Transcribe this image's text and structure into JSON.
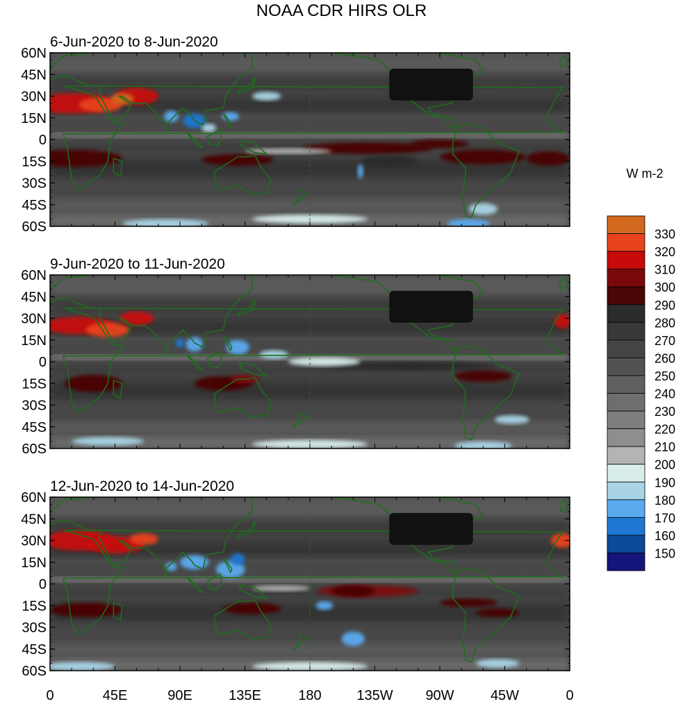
{
  "title": "NOAA CDR HIRS OLR",
  "panels": [
    {
      "label": "6-Jun-2020 to 8-Jun-2020"
    },
    {
      "label": "9-Jun-2020 to 11-Jun-2020"
    },
    {
      "label": "12-Jun-2020 to 14-Jun-2020"
    }
  ],
  "lat_ticks": [
    "60N",
    "45N",
    "30N",
    "15N",
    "0",
    "15S",
    "30S",
    "45S",
    "60S"
  ],
  "lon_ticks": [
    "0",
    "45E",
    "90E",
    "135E",
    "180",
    "135W",
    "90W",
    "45W",
    "0"
  ],
  "colorbar": {
    "unit": "W m-2",
    "levels": [
      "330",
      "320",
      "310",
      "300",
      "290",
      "280",
      "270",
      "260",
      "250",
      "240",
      "230",
      "220",
      "210",
      "200",
      "190",
      "180",
      "170",
      "160",
      "150"
    ],
    "colors": [
      "#d2691e",
      "#e8431c",
      "#c80a0a",
      "#7a0a0a",
      "#4a0505",
      "#2c2c2c",
      "#383838",
      "#454545",
      "#525252",
      "#606060",
      "#6e6e6e",
      "#7e7e7e",
      "#8e8e8e",
      "#b4b4b4",
      "#d8ecec",
      "#a8d4e6",
      "#5aaaf0",
      "#1e78d2",
      "#0a4a96",
      "#14147a"
    ]
  },
  "colors": {
    "coastline": "#1e6e1e",
    "background_gray": "#4a4a4a"
  }
}
